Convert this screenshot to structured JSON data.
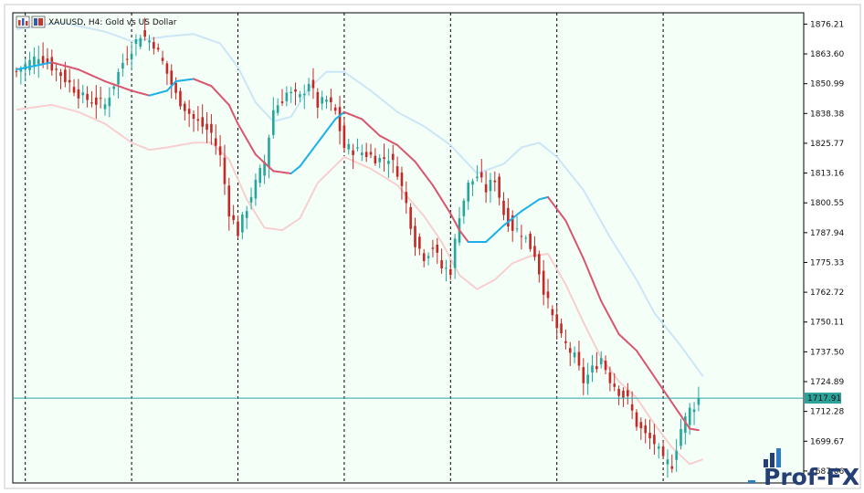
{
  "window": {
    "title": "XAUUSD, H4:  Gold vs US Dollar",
    "icons": [
      "chart-bars-icon",
      "chart-flag-icon"
    ]
  },
  "colors": {
    "plot_bg": "#f4fff8",
    "bull": "#26a69a",
    "bear": "#c62828",
    "ma_up": "#1cb0e8",
    "ma_down": "#d9566f",
    "band_upper": "#cce6f5",
    "band_lower": "#f8cfcf",
    "price_line": "#2aa3a3",
    "price_label_bg": "#2aa39a",
    "separator": "#000000",
    "logo_dark": "#243f73",
    "logo_blue": "#2a7ec2"
  },
  "logo": {
    "text": "Prof-FX"
  },
  "chart_data": {
    "type": "candlestick",
    "symbol": "XAUUSD",
    "timeframe": "H4",
    "description": "Gold vs US Dollar",
    "current_price": 1717.91,
    "current_price_label": "1717.91",
    "y_axis_ticks": [
      "1876.21",
      "1863.60",
      "1850.99",
      "1838.38",
      "1825.77",
      "1813.16",
      "1800.55",
      "1787.94",
      "1775.33",
      "1762.72",
      "1750.11",
      "1737.50",
      "1724.89",
      "1712.28",
      "1699.67",
      "1687.06"
    ],
    "ylim": [
      1682,
      1881
    ],
    "bar_count": 155,
    "session_separators_at_bar": [
      2,
      26,
      50,
      74,
      98,
      122,
      146
    ],
    "ma_points": [
      [
        0,
        1857
      ],
      [
        8,
        1860
      ],
      [
        14,
        1857
      ],
      [
        20,
        1852
      ],
      [
        26,
        1848
      ],
      [
        30,
        1846
      ],
      [
        34,
        1848
      ],
      [
        36,
        1852
      ],
      [
        40,
        1853
      ],
      [
        44,
        1850
      ],
      [
        48,
        1842
      ],
      [
        50,
        1834
      ],
      [
        54,
        1821
      ],
      [
        58,
        1814
      ],
      [
        62,
        1813
      ],
      [
        64,
        1816
      ],
      [
        68,
        1826
      ],
      [
        72,
        1836
      ],
      [
        74,
        1839
      ],
      [
        78,
        1836
      ],
      [
        82,
        1829
      ],
      [
        86,
        1825
      ],
      [
        90,
        1818
      ],
      [
        94,
        1808
      ],
      [
        98,
        1796
      ],
      [
        100,
        1789
      ],
      [
        102,
        1784
      ],
      [
        106,
        1784
      ],
      [
        110,
        1791
      ],
      [
        114,
        1797
      ],
      [
        118,
        1802
      ],
      [
        120,
        1803
      ],
      [
        124,
        1793
      ],
      [
        126,
        1785
      ],
      [
        128,
        1777
      ],
      [
        132,
        1759
      ],
      [
        136,
        1745
      ],
      [
        140,
        1738
      ],
      [
        144,
        1727
      ],
      [
        148,
        1716
      ],
      [
        152,
        1705
      ],
      [
        155,
        1704
      ]
    ],
    "upper_band_points": [
      [
        0,
        1874
      ],
      [
        10,
        1877
      ],
      [
        20,
        1873
      ],
      [
        26,
        1869
      ],
      [
        34,
        1871
      ],
      [
        40,
        1872
      ],
      [
        46,
        1868
      ],
      [
        50,
        1858
      ],
      [
        54,
        1843
      ],
      [
        58,
        1835
      ],
      [
        62,
        1837
      ],
      [
        66,
        1849
      ],
      [
        70,
        1856
      ],
      [
        74,
        1856
      ],
      [
        80,
        1848
      ],
      [
        86,
        1839
      ],
      [
        92,
        1833
      ],
      [
        98,
        1825
      ],
      [
        104,
        1813
      ],
      [
        110,
        1817
      ],
      [
        114,
        1824
      ],
      [
        118,
        1826
      ],
      [
        122,
        1820
      ],
      [
        128,
        1806
      ],
      [
        134,
        1786
      ],
      [
        140,
        1768
      ],
      [
        144,
        1754
      ],
      [
        150,
        1740
      ],
      [
        155,
        1727
      ]
    ],
    "lower_band_points": [
      [
        0,
        1840
      ],
      [
        8,
        1842
      ],
      [
        14,
        1839
      ],
      [
        20,
        1834
      ],
      [
        26,
        1826
      ],
      [
        30,
        1823
      ],
      [
        34,
        1824
      ],
      [
        40,
        1826
      ],
      [
        44,
        1826
      ],
      [
        48,
        1819
      ],
      [
        52,
        1802
      ],
      [
        56,
        1790
      ],
      [
        60,
        1789
      ],
      [
        64,
        1794
      ],
      [
        68,
        1809
      ],
      [
        74,
        1820
      ],
      [
        80,
        1815
      ],
      [
        86,
        1808
      ],
      [
        92,
        1795
      ],
      [
        96,
        1784
      ],
      [
        100,
        1770
      ],
      [
        104,
        1764
      ],
      [
        108,
        1768
      ],
      [
        112,
        1775
      ],
      [
        116,
        1778
      ],
      [
        120,
        1779
      ],
      [
        124,
        1766
      ],
      [
        128,
        1750
      ],
      [
        132,
        1735
      ],
      [
        136,
        1725
      ],
      [
        140,
        1718
      ],
      [
        144,
        1707
      ],
      [
        148,
        1697
      ],
      [
        152,
        1690
      ],
      [
        155,
        1692
      ]
    ],
    "price_anchor_points": [
      [
        0,
        1856
      ],
      [
        5,
        1863
      ],
      [
        10,
        1855
      ],
      [
        15,
        1845
      ],
      [
        20,
        1842
      ],
      [
        24,
        1860
      ],
      [
        28,
        1872
      ],
      [
        31,
        1868
      ],
      [
        33,
        1860
      ],
      [
        36,
        1846
      ],
      [
        40,
        1836
      ],
      [
        44,
        1830
      ],
      [
        46,
        1820
      ],
      [
        48,
        1797
      ],
      [
        50,
        1788
      ],
      [
        53,
        1804
      ],
      [
        56,
        1818
      ],
      [
        58,
        1840
      ],
      [
        61,
        1847
      ],
      [
        64,
        1845
      ],
      [
        66,
        1852
      ],
      [
        68,
        1842
      ],
      [
        70,
        1844
      ],
      [
        72,
        1839
      ],
      [
        74,
        1824
      ],
      [
        78,
        1822
      ],
      [
        82,
        1819
      ],
      [
        84,
        1820
      ],
      [
        86,
        1814
      ],
      [
        88,
        1800
      ],
      [
        90,
        1784
      ],
      [
        92,
        1778
      ],
      [
        94,
        1782
      ],
      [
        96,
        1773
      ],
      [
        98,
        1772
      ],
      [
        100,
        1796
      ],
      [
        102,
        1808
      ],
      [
        104,
        1812
      ],
      [
        106,
        1806
      ],
      [
        108,
        1811
      ],
      [
        110,
        1796
      ],
      [
        112,
        1790
      ],
      [
        114,
        1788
      ],
      [
        117,
        1779
      ],
      [
        119,
        1764
      ],
      [
        121,
        1752
      ],
      [
        123,
        1743
      ],
      [
        126,
        1735
      ],
      [
        128,
        1725
      ],
      [
        130,
        1730
      ],
      [
        132,
        1735
      ],
      [
        134,
        1726
      ],
      [
        136,
        1721
      ],
      [
        138,
        1717
      ],
      [
        140,
        1707
      ],
      [
        142,
        1702
      ],
      [
        144,
        1699
      ],
      [
        146,
        1691
      ],
      [
        148,
        1690
      ],
      [
        150,
        1705
      ],
      [
        152,
        1713
      ],
      [
        154,
        1717
      ]
    ]
  }
}
